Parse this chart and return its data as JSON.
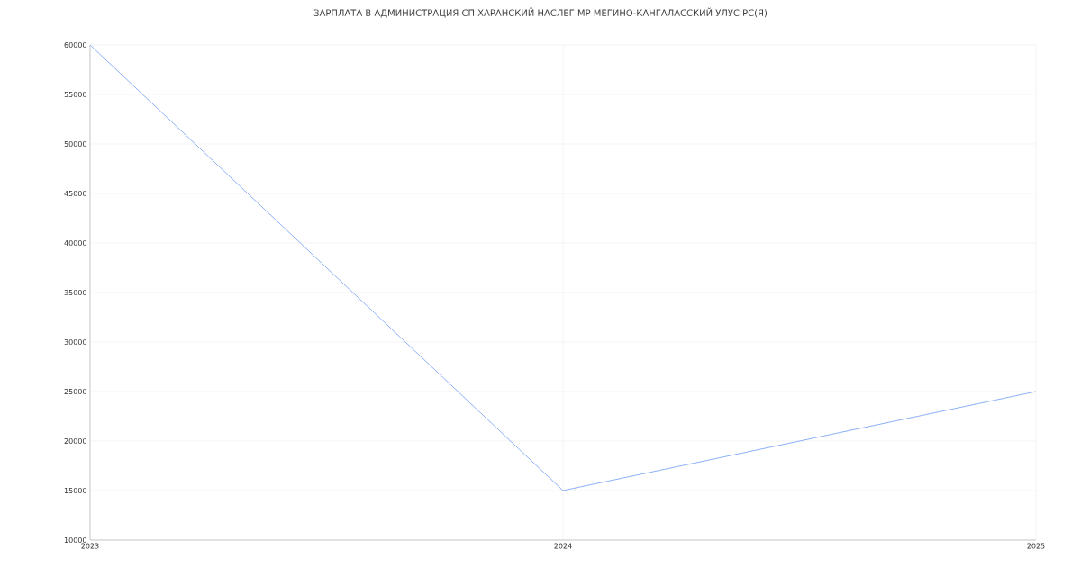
{
  "chart_data": {
    "type": "line",
    "title": "ЗАРПЛАТА В АДМИНИСТРАЦИЯ СП ХАРАНСКИЙ НАСЛЕГ МР МЕГИНО-КАНГАЛАССКИЙ УЛУС РС(Я)",
    "x": [
      "2023",
      "2024",
      "2025"
    ],
    "series": [
      {
        "color": "#6f9cf5",
        "values": [
          60000,
          15000,
          25000
        ]
      }
    ],
    "xlim": [
      "2023",
      "2025"
    ],
    "xticks": [
      "2023",
      "2024",
      "2025"
    ],
    "ylim": [
      10000,
      60000
    ],
    "yticks": [
      10000,
      15000,
      20000,
      25000,
      30000,
      35000,
      40000,
      45000,
      50000,
      55000,
      60000
    ],
    "grid": true,
    "marker": "none",
    "line_style": "solid"
  }
}
